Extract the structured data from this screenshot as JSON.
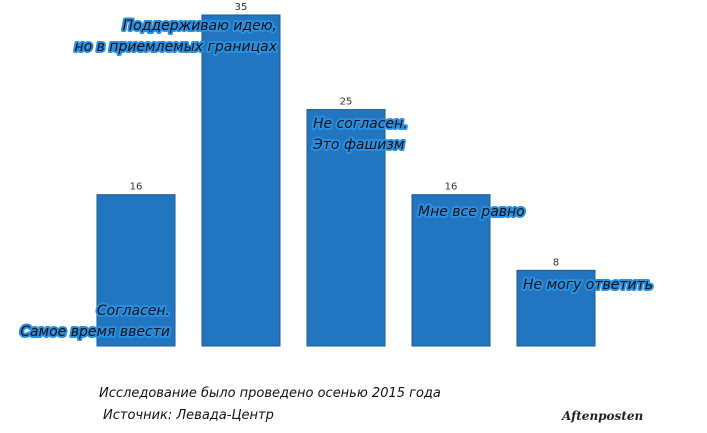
{
  "chart_data": {
    "type": "bar",
    "categories": [
      [
        "Согласен.",
        "Самое время ввести"
      ],
      [
        "Поддерживаю идею,",
        "но в приемлемых границах"
      ],
      [
        "Не согласен.",
        "Это фашизм"
      ],
      [
        "Мне все равно"
      ],
      [
        "Не могу ответить"
      ]
    ],
    "values": [
      16,
      35,
      25,
      16,
      8
    ],
    "color": "#2176bf",
    "notes": [
      "Исследование было проведено осенью 2015 года",
      "Источник: Левада-Центр"
    ],
    "logo": "Aftenposten"
  }
}
